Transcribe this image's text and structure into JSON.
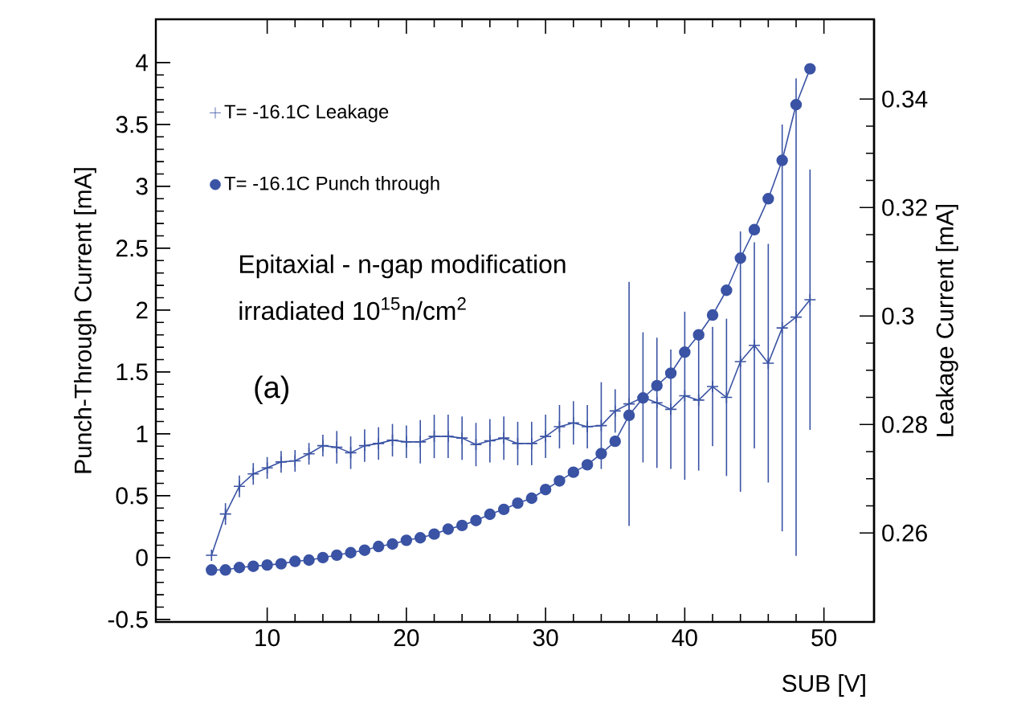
{
  "chart_data": {
    "type": "line",
    "xlabel": "SUB [V]",
    "ylabel": "Punch-Through Current [mA]",
    "y2label": "Leakage Current [mA]",
    "xlim": [
      2,
      53.6
    ],
    "xticks": [
      10,
      20,
      30,
      40,
      50
    ],
    "ylim": [
      -0.52,
      4.35
    ],
    "yticks": [
      -0.5,
      0,
      0.5,
      1,
      1.5,
      2,
      2.5,
      3,
      3.5,
      4
    ],
    "y2lim": [
      0.2436,
      0.3547
    ],
    "y2ticks": [
      0.26,
      0.28,
      0.3,
      0.32,
      0.34
    ],
    "legend": "top left",
    "annotations": [
      "Epitaxial - n-gap modification",
      "irradiated 10$^{15}$n/cm$^{2}$",
      "(a)"
    ],
    "series": [
      {
        "name": "T= -16.1C Leakage",
        "color": "#3a53a4",
        "axis": "y2",
        "marker": "cross",
        "x": [
          6,
          7,
          8,
          9,
          10,
          11,
          12,
          13,
          14,
          15,
          16,
          17,
          18,
          19,
          20,
          21,
          22,
          23,
          24,
          25,
          26,
          27,
          28,
          29,
          30,
          31,
          32,
          33,
          34,
          35,
          36,
          37,
          38,
          39,
          40,
          41,
          42,
          43,
          44,
          45,
          46,
          47,
          48,
          49
        ],
        "values": [
          0.2559,
          0.2635,
          0.2686,
          0.2709,
          0.272,
          0.2731,
          0.2733,
          0.2746,
          0.2761,
          0.2758,
          0.2748,
          0.2761,
          0.2765,
          0.2771,
          0.2768,
          0.2768,
          0.2778,
          0.2778,
          0.2775,
          0.2763,
          0.277,
          0.2775,
          0.2765,
          0.2765,
          0.2778,
          0.2796,
          0.2803,
          0.2796,
          0.2798,
          0.2825,
          0.2838,
          0.285,
          0.284,
          0.2828,
          0.2853,
          0.2845,
          0.287,
          0.285,
          0.2916,
          0.2946,
          0.2913,
          0.2978,
          0.2998,
          0.303
        ],
        "errors": [
          null,
          0.002,
          0.002,
          0.002,
          0.002,
          0.002,
          0.002,
          0.002,
          0.002,
          0.003,
          0.003,
          0.003,
          0.003,
          0.003,
          0.003,
          0.004,
          0.004,
          0.004,
          0.004,
          0.004,
          0.004,
          0.004,
          0.004,
          0.004,
          0.004,
          0.004,
          0.004,
          0.004,
          0.008,
          0.004,
          0.0225,
          0.012,
          0.012,
          0.011,
          0.0155,
          0.013,
          0.011,
          0.0145,
          0.024,
          0.019,
          0.022,
          0.0375,
          0.044,
          0.024
        ]
      },
      {
        "name": "T= -16.1C  Punch through",
        "color": "#3a53a4",
        "marker": "circle",
        "x": [
          6,
          7,
          8,
          9,
          10,
          11,
          12,
          13,
          14,
          15,
          16,
          17,
          18,
          19,
          20,
          21,
          22,
          23,
          24,
          25,
          26,
          27,
          28,
          29,
          30,
          31,
          32,
          33,
          34,
          35,
          36,
          37,
          38,
          39,
          40,
          41,
          42,
          43,
          44,
          45,
          46,
          47,
          48,
          49
        ],
        "values": [
          -0.1,
          -0.1,
          -0.08,
          -0.07,
          -0.06,
          -0.05,
          -0.03,
          -0.02,
          0,
          0.02,
          0.04,
          0.06,
          0.09,
          0.11,
          0.14,
          0.16,
          0.19,
          0.23,
          0.26,
          0.3,
          0.35,
          0.39,
          0.44,
          0.48,
          0.55,
          0.62,
          0.69,
          0.75,
          0.84,
          0.94,
          1.15,
          1.29,
          1.39,
          1.49,
          1.66,
          1.8,
          1.96,
          2.16,
          2.42,
          2.65,
          2.9,
          3.21,
          3.66,
          3.95
        ]
      }
    ]
  }
}
